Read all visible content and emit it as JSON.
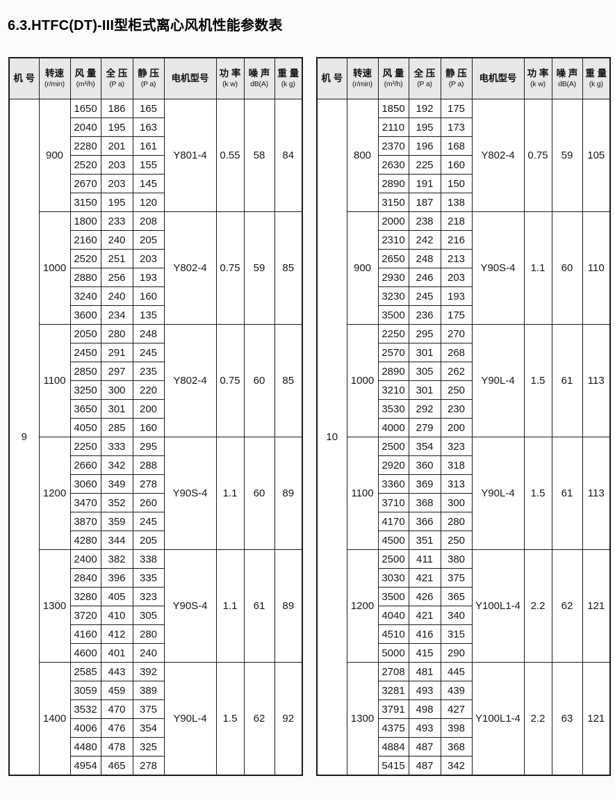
{
  "page": {
    "title": "6.3.HTFC(DT)-III型柜式离心风机性能参数表"
  },
  "table_header": {
    "cols": [
      {
        "t": "机 号",
        "s": ""
      },
      {
        "t": "转速",
        "s": "(r/min)"
      },
      {
        "t": "风 量",
        "s": "(m³/h)"
      },
      {
        "t": "全 压",
        "s": "(P a)"
      },
      {
        "t": "静 压",
        "s": "(P a)"
      },
      {
        "t": "电机型号",
        "s": ""
      },
      {
        "t": "功 率",
        "s": "(k w)"
      },
      {
        "t": "噪 声",
        "s": "dB(A)"
      },
      {
        "t": "重 量",
        "s": "(k g)"
      }
    ]
  },
  "tables": [
    {
      "machine_no": "9",
      "groups": [
        {
          "speed": "900",
          "motor": "Y801-4",
          "power": "0.55",
          "noise": "58",
          "weight": "84",
          "rows": [
            [
              "1650",
              "186",
              "165"
            ],
            [
              "2040",
              "195",
              "163"
            ],
            [
              "2280",
              "201",
              "161"
            ],
            [
              "2520",
              "203",
              "155"
            ],
            [
              "2670",
              "203",
              "145"
            ],
            [
              "3150",
              "195",
              "120"
            ]
          ]
        },
        {
          "speed": "1000",
          "motor": "Y802-4",
          "power": "0.75",
          "noise": "59",
          "weight": "85",
          "rows": [
            [
              "1800",
              "233",
              "208"
            ],
            [
              "2160",
              "240",
              "205"
            ],
            [
              "2520",
              "251",
              "203"
            ],
            [
              "2880",
              "256",
              "193"
            ],
            [
              "3240",
              "240",
              "160"
            ],
            [
              "3600",
              "234",
              "135"
            ]
          ]
        },
        {
          "speed": "1100",
          "motor": "Y802-4",
          "power": "0.75",
          "noise": "60",
          "weight": "85",
          "rows": [
            [
              "2050",
              "280",
              "248"
            ],
            [
              "2450",
              "291",
              "245"
            ],
            [
              "2850",
              "297",
              "235"
            ],
            [
              "3250",
              "300",
              "220"
            ],
            [
              "3650",
              "301",
              "200"
            ],
            [
              "4050",
              "285",
              "160"
            ]
          ]
        },
        {
          "speed": "1200",
          "motor": "Y90S-4",
          "power": "1.1",
          "noise": "60",
          "weight": "89",
          "rows": [
            [
              "2250",
              "333",
              "295"
            ],
            [
              "2660",
              "342",
              "288"
            ],
            [
              "3060",
              "349",
              "278"
            ],
            [
              "3470",
              "352",
              "260"
            ],
            [
              "3870",
              "359",
              "245"
            ],
            [
              "4280",
              "344",
              "205"
            ]
          ]
        },
        {
          "speed": "1300",
          "motor": "Y90S-4",
          "power": "1.1",
          "noise": "61",
          "weight": "89",
          "rows": [
            [
              "2400",
              "382",
              "338"
            ],
            [
              "2840",
              "396",
              "335"
            ],
            [
              "3280",
              "405",
              "323"
            ],
            [
              "3720",
              "410",
              "305"
            ],
            [
              "4160",
              "412",
              "280"
            ],
            [
              "4600",
              "401",
              "240"
            ]
          ]
        },
        {
          "speed": "1400",
          "motor": "Y90L-4",
          "power": "1.5",
          "noise": "62",
          "weight": "92",
          "rows": [
            [
              "2585",
              "443",
              "392"
            ],
            [
              "3059",
              "459",
              "389"
            ],
            [
              "3532",
              "470",
              "375"
            ],
            [
              "4006",
              "476",
              "354"
            ],
            [
              "4480",
              "478",
              "325"
            ],
            [
              "4954",
              "465",
              "278"
            ]
          ]
        }
      ]
    },
    {
      "machine_no": "10",
      "groups": [
        {
          "speed": "800",
          "motor": "Y802-4",
          "power": "0.75",
          "noise": "59",
          "weight": "105",
          "rows": [
            [
              "1850",
              "192",
              "175"
            ],
            [
              "2110",
              "195",
              "173"
            ],
            [
              "2370",
              "196",
              "168"
            ],
            [
              "2630",
              "225",
              "160"
            ],
            [
              "2890",
              "191",
              "150"
            ],
            [
              "3150",
              "187",
              "138"
            ]
          ]
        },
        {
          "speed": "900",
          "motor": "Y90S-4",
          "power": "1.1",
          "noise": "60",
          "weight": "110",
          "rows": [
            [
              "2000",
              "238",
              "218"
            ],
            [
              "2310",
              "242",
              "216"
            ],
            [
              "2650",
              "248",
              "213"
            ],
            [
              "2930",
              "246",
              "203"
            ],
            [
              "3230",
              "245",
              "193"
            ],
            [
              "3500",
              "236",
              "175"
            ]
          ]
        },
        {
          "speed": "1000",
          "motor": "Y90L-4",
          "power": "1.5",
          "noise": "61",
          "weight": "113",
          "rows": [
            [
              "2250",
              "295",
              "270"
            ],
            [
              "2570",
              "301",
              "268"
            ],
            [
              "2890",
              "305",
              "262"
            ],
            [
              "3210",
              "301",
              "250"
            ],
            [
              "3530",
              "292",
              "230"
            ],
            [
              "4000",
              "279",
              "200"
            ]
          ]
        },
        {
          "speed": "1100",
          "motor": "Y90L-4",
          "power": "1.5",
          "noise": "61",
          "weight": "113",
          "rows": [
            [
              "2500",
              "354",
              "323"
            ],
            [
              "2920",
              "360",
              "318"
            ],
            [
              "3360",
              "369",
              "313"
            ],
            [
              "3710",
              "368",
              "300"
            ],
            [
              "4170",
              "366",
              "280"
            ],
            [
              "4500",
              "351",
              "250"
            ]
          ]
        },
        {
          "speed": "1200",
          "motor": "Y100L1-4",
          "power": "2.2",
          "noise": "62",
          "weight": "121",
          "rows": [
            [
              "2500",
              "411",
              "380"
            ],
            [
              "3030",
              "421",
              "375"
            ],
            [
              "3500",
              "426",
              "365"
            ],
            [
              "4040",
              "421",
              "340"
            ],
            [
              "4510",
              "416",
              "315"
            ],
            [
              "5000",
              "415",
              "290"
            ]
          ]
        },
        {
          "speed": "1300",
          "motor": "Y100L1-4",
          "power": "2.2",
          "noise": "63",
          "weight": "121",
          "rows": [
            [
              "2708",
              "481",
              "445"
            ],
            [
              "3281",
              "493",
              "439"
            ],
            [
              "3791",
              "498",
              "427"
            ],
            [
              "4375",
              "493",
              "398"
            ],
            [
              "4884",
              "487",
              "368"
            ],
            [
              "5415",
              "487",
              "342"
            ]
          ]
        }
      ]
    }
  ],
  "colors": {
    "page_bg": "#fbfbfb",
    "header_bg": "#e8e8e8",
    "border": "#1a1a1a",
    "text": "#111111"
  }
}
